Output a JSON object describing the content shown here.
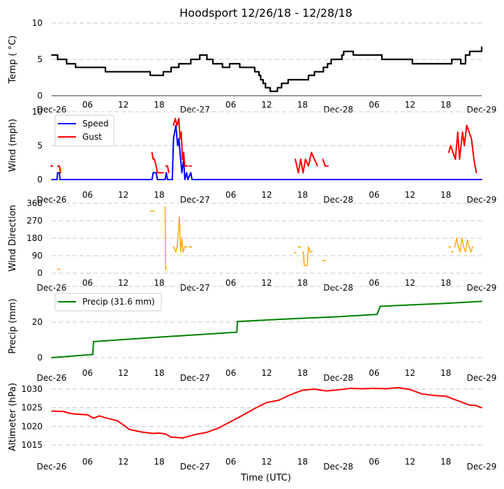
{
  "title": "Hoodsport 12/26/18 - 12/28/18",
  "xlabel": "Time (UTC)",
  "x_tick_labels": [
    "Dec-26",
    "06",
    "12",
    "18",
    "Dec-27",
    "06",
    "12",
    "18",
    "Dec-28",
    "06",
    "12",
    "18",
    "Dec-29"
  ],
  "x_tick_hours": [
    0,
    6,
    12,
    18,
    24,
    30,
    36,
    42,
    48,
    54,
    60,
    66,
    72
  ],
  "colors": {
    "temp": "#000000",
    "speed": "#0000ff",
    "gust": "#ff0000",
    "direction": "#ffa500",
    "precip": "#008000",
    "altimeter": "#ff0000",
    "grid": "#c8c8c8"
  },
  "chart_data": [
    {
      "type": "line",
      "name": "temperature",
      "ylabel": "Temp ( °C)",
      "ylim": [
        0,
        10
      ],
      "yticks": [
        0,
        5,
        10
      ],
      "x_unit": "hours since Dec-26 00 UTC",
      "grid": true,
      "series": [
        {
          "name": "Temp",
          "step": true,
          "x": [
            0,
            1,
            2.5,
            4,
            9,
            16.5,
            18.7,
            20,
            21.3,
            23.3,
            24.8,
            26,
            27,
            28.6,
            29.8,
            31.5,
            34,
            34.7,
            35,
            35.4,
            35.8,
            36.6,
            37.8,
            38.5,
            39.6,
            40.2,
            43,
            44,
            45.5,
            46.2,
            46.8,
            48.6,
            48.9,
            50.5,
            55.3,
            60.4,
            67,
            68.5,
            69.3,
            70,
            72
          ],
          "y": [
            5.6,
            5.0,
            4.4,
            3.9,
            3.3,
            2.8,
            3.3,
            3.9,
            4.4,
            5.0,
            5.6,
            5.0,
            4.4,
            3.9,
            4.4,
            3.9,
            3.3,
            2.8,
            2.2,
            1.7,
            1.1,
            0.6,
            1.1,
            1.7,
            2.2,
            2.2,
            2.8,
            3.3,
            3.9,
            4.4,
            5.0,
            5.6,
            6.1,
            5.6,
            5.0,
            4.4,
            5.0,
            4.4,
            5.6,
            6.1,
            6.7
          ]
        }
      ]
    },
    {
      "type": "line",
      "name": "wind",
      "ylabel": "Wind (mph)",
      "ylim": [
        0,
        10
      ],
      "yticks": [
        0,
        5,
        10
      ],
      "grid": true,
      "legend": {
        "position": "top-left",
        "entries": [
          "Speed",
          "Gust"
        ]
      },
      "series": [
        {
          "name": "Speed",
          "x": [
            0,
            0.9,
            1,
            1.3,
            1.4,
            16.8,
            17,
            17.5,
            17.7,
            19,
            19.2,
            19.4,
            20.2,
            20.4,
            20.8,
            21.1,
            21.3,
            21.6,
            21.8,
            22.1,
            22.3,
            22.6,
            22.8,
            23.3,
            23.5,
            72
          ],
          "y": [
            0,
            0,
            1,
            1,
            0,
            0,
            1,
            1,
            0,
            0,
            1,
            0,
            0,
            6,
            8,
            5,
            6,
            3,
            1,
            3,
            0,
            1,
            0,
            1,
            0,
            0
          ]
        },
        {
          "name": "Gust",
          "segments": [
            {
              "x": [
                0.0
              ],
              "y": [
                2
              ]
            },
            {
              "x": [
                1.0,
                1.3,
                1.5
              ],
              "y": [
                2,
                2,
                1
              ]
            },
            {
              "x": [
                16.8,
                17.0,
                17.2,
                17.5,
                17.7,
                18.2,
                18.7
              ],
              "y": [
                4,
                3,
                3,
                2,
                1,
                1,
                1
              ]
            },
            {
              "x": [
                19.1,
                19.4,
                19.6
              ],
              "y": [
                2,
                2,
                1
              ]
            },
            {
              "x": [
                20.4,
                20.7,
                21.0,
                21.3,
                21.5,
                21.7,
                21.9,
                22.1,
                22.3,
                22.5,
                22.8
              ],
              "y": [
                8,
                9,
                8,
                9,
                6,
                7,
                3,
                4,
                2,
                2,
                2
              ]
            },
            {
              "x": [
                23.1,
                23.4
              ],
              "y": [
                2,
                2
              ]
            },
            {
              "x": [
                40.8,
                41.3,
                41.7,
                42.1,
                42.5,
                43.0,
                43.5,
                44.0,
                44.5
              ],
              "y": [
                3,
                1,
                3,
                1,
                3,
                2,
                4,
                3,
                2
              ]
            },
            {
              "x": [
                45.4,
                45.8,
                46.3
              ],
              "y": [
                3,
                2,
                2
              ]
            },
            {
              "x": [
                66.5,
                66.8,
                67.2,
                67.6,
                68.0,
                68.3,
                68.8,
                69.1,
                69.5,
                69.9,
                70.3,
                70.7,
                71.1
              ],
              "y": [
                4,
                5,
                4,
                3,
                7,
                3,
                7,
                5,
                8,
                7,
                6,
                3,
                1
              ]
            }
          ]
        }
      ]
    },
    {
      "type": "scatter",
      "name": "wind_direction",
      "ylabel": "Wind Direction",
      "ylim": [
        0,
        360
      ],
      "yticks": [
        0,
        90,
        180,
        270,
        360
      ],
      "grid": true,
      "series": [
        {
          "name": "Direction",
          "segments": [
            {
              "x": [
                1.0,
                1.3
              ],
              "y": [
                20,
                20
              ]
            },
            {
              "x": [
                16.6,
                17.2
              ],
              "y": [
                320,
                320
              ]
            },
            {
              "x": [
                19.0,
                19.1,
                19.2
              ],
              "y": [
                340,
                20,
                20
              ]
            },
            {
              "x": [
                20.4,
                20.8,
                21.0,
                21.2,
                21.4,
                21.6,
                21.8,
                22.0,
                22.3,
                22.6
              ],
              "y": [
                135,
                110,
                135,
                205,
                290,
                110,
                180,
                110,
                135,
                135
              ]
            },
            {
              "x": [
                23.0,
                23.4
              ],
              "y": [
                135,
                135
              ]
            },
            {
              "x": [
                40.8
              ],
              "y": [
                105
              ]
            },
            {
              "x": [
                41.3,
                41.7
              ],
              "y": [
                135,
                135
              ]
            },
            {
              "x": [
                42.1,
                42.3,
                42.8,
                43.0,
                43.3,
                43.6
              ],
              "y": [
                110,
                40,
                40,
                135,
                110,
                110
              ]
            },
            {
              "x": [
                45.4,
                45.9
              ],
              "y": [
                65,
                65
              ]
            },
            {
              "x": [
                66.5,
                66.8
              ],
              "y": [
                135,
                135
              ]
            },
            {
              "x": [
                67.1
              ],
              "y": [
                110
              ]
            },
            {
              "x": [
                67.5,
                67.8,
                68.1,
                68.4,
                68.7,
                69.0,
                69.3,
                69.6,
                69.9,
                70.2,
                70.5
              ],
              "y": [
                135,
                180,
                135,
                110,
                180,
                135,
                110,
                170,
                135,
                110,
                135
              ]
            }
          ]
        }
      ]
    },
    {
      "type": "line",
      "name": "precipitation",
      "ylabel": "Precip (mm)",
      "ylim": [
        0,
        40
      ],
      "yticks": [
        0,
        20
      ],
      "grid": true,
      "legend": {
        "position": "top-left",
        "entries": [
          "Precip (31.6 mm)"
        ]
      },
      "series": [
        {
          "name": "Precip (31.6 mm)",
          "x": [
            0,
            6.9,
            7.0,
            18,
            24,
            31.0,
            31.1,
            40,
            48,
            54.5,
            55.0,
            60,
            66,
            72
          ],
          "y": [
            0,
            1.8,
            9.0,
            11.5,
            12.8,
            14.3,
            20.3,
            21.8,
            23.0,
            24.3,
            28.8,
            29.6,
            30.5,
            31.6
          ]
        }
      ]
    },
    {
      "type": "line",
      "name": "altimeter",
      "ylabel": "Altimeter (hPa)",
      "xlabel": "Time (UTC)",
      "ylim": [
        1012,
        1032
      ],
      "yticks": [
        1015,
        1020,
        1025,
        1030
      ],
      "grid": true,
      "series": [
        {
          "name": "Altimeter",
          "x": [
            0,
            2,
            3,
            4,
            6,
            7,
            8,
            9,
            11,
            12,
            13,
            15,
            17,
            18,
            19,
            20,
            22,
            24,
            26,
            28,
            30,
            32,
            34,
            36,
            38,
            40,
            42,
            44,
            46,
            48,
            50,
            52,
            54,
            56,
            58,
            60,
            62,
            64,
            66,
            68,
            70,
            71,
            72
          ],
          "y": [
            1024.1,
            1024.0,
            1023.5,
            1023.3,
            1023.1,
            1022.2,
            1022.8,
            1022.3,
            1021.5,
            1020.4,
            1019.2,
            1018.5,
            1018.1,
            1018.2,
            1018.0,
            1017.1,
            1016.9,
            1017.8,
            1018.4,
            1019.6,
            1021.3,
            1023.0,
            1024.8,
            1026.4,
            1027.0,
            1028.5,
            1029.7,
            1030.0,
            1029.5,
            1029.8,
            1030.2,
            1030.1,
            1030.2,
            1030.1,
            1030.4,
            1029.9,
            1028.7,
            1028.3,
            1028.1,
            1026.9,
            1025.7,
            1025.6,
            1025.0
          ]
        }
      ]
    }
  ]
}
